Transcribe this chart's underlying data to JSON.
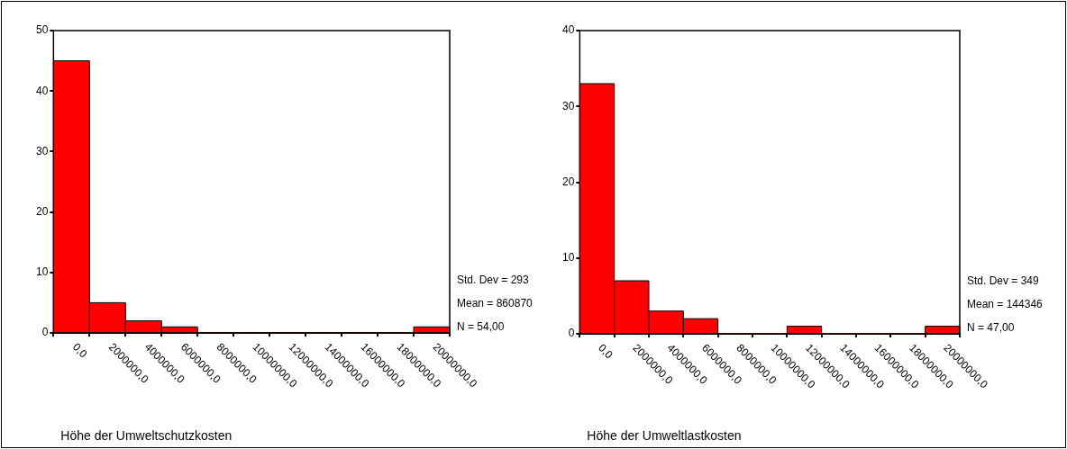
{
  "chart_data": [
    {
      "type": "histogram",
      "xlabel": "Höhe der Umweltschutzkosten",
      "bins": [
        -1000000,
        1000000,
        3000000,
        5000000,
        7000000,
        9000000,
        11000000,
        13000000,
        15000000,
        17000000,
        19000000,
        21000000
      ],
      "values": [
        45,
        5,
        2,
        1,
        0,
        0,
        0,
        0,
        0,
        0,
        1
      ],
      "color": "#ff0000",
      "xlim": [
        -1000000,
        21000000
      ],
      "xticks": [
        {
          "value": 0,
          "label": "0,0"
        },
        {
          "value": 2000000,
          "label": "2000000,0"
        },
        {
          "value": 4000000,
          "label": "4000000,0"
        },
        {
          "value": 6000000,
          "label": "6000000,0"
        },
        {
          "value": 8000000,
          "label": "8000000,0"
        },
        {
          "value": 10000000,
          "label": "10000000,0"
        },
        {
          "value": 12000000,
          "label": "12000000,0"
        },
        {
          "value": 14000000,
          "label": "14000000,0"
        },
        {
          "value": 16000000,
          "label": "16000000,0"
        },
        {
          "value": 18000000,
          "label": "18000000,0"
        },
        {
          "value": 20000000,
          "label": "20000000,0"
        }
      ],
      "ylim": [
        0,
        50
      ],
      "yticks": [
        0,
        10,
        20,
        30,
        40,
        50
      ],
      "annotations": [
        "Std. Dev = 293",
        "Mean = 860870",
        "N = 54,00"
      ]
    },
    {
      "type": "histogram",
      "xlabel": "Höhe der Umweltlastkosten",
      "bins": [
        -1000000,
        1000000,
        3000000,
        5000000,
        7000000,
        9000000,
        11000000,
        13000000,
        15000000,
        17000000,
        19000000,
        21000000
      ],
      "values": [
        33,
        7,
        3,
        2,
        0,
        0,
        1,
        0,
        0,
        0,
        1
      ],
      "color": "#ff0000",
      "xlim": [
        -1000000,
        21000000
      ],
      "xticks": [
        {
          "value": 0,
          "label": "0,0"
        },
        {
          "value": 2000000,
          "label": "2000000,0"
        },
        {
          "value": 4000000,
          "label": "4000000,0"
        },
        {
          "value": 6000000,
          "label": "6000000,0"
        },
        {
          "value": 8000000,
          "label": "8000000,0"
        },
        {
          "value": 10000000,
          "label": "10000000,0"
        },
        {
          "value": 12000000,
          "label": "12000000,0"
        },
        {
          "value": 14000000,
          "label": "14000000,0"
        },
        {
          "value": 16000000,
          "label": "16000000,0"
        },
        {
          "value": 18000000,
          "label": "18000000,0"
        },
        {
          "value": 20000000,
          "label": "20000000,0"
        }
      ],
      "ylim": [
        0,
        40
      ],
      "yticks": [
        0,
        10,
        20,
        30,
        40
      ],
      "annotations": [
        "Std. Dev = 349",
        "Mean = 144346",
        "N = 47,00"
      ]
    }
  ]
}
